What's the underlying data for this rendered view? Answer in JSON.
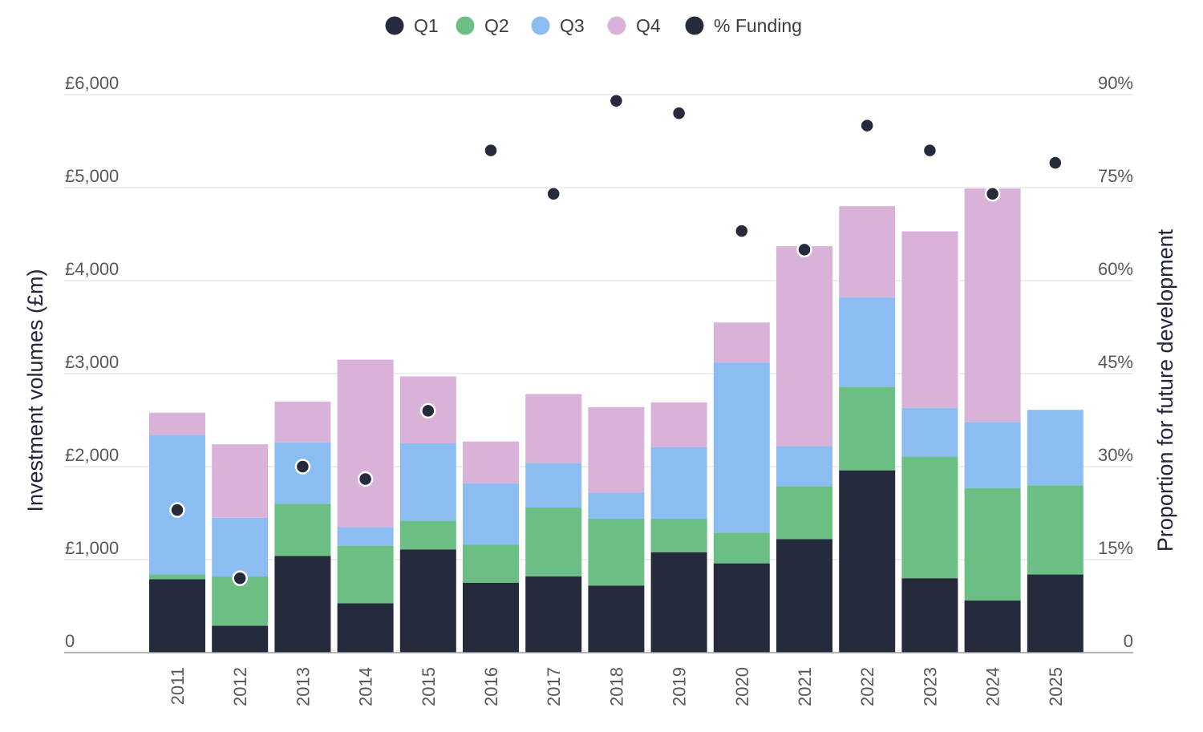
{
  "chart_data": {
    "type": "bar",
    "stacked": true,
    "categories": [
      "2011",
      "2012",
      "2013",
      "2014",
      "2015",
      "2016",
      "2017",
      "2018",
      "2019",
      "2020",
      "2021",
      "2022",
      "2023",
      "2024",
      "2025"
    ],
    "series": [
      {
        "name": "Q1",
        "color": "#262a3d",
        "values": [
          790,
          290,
          1040,
          530,
          1110,
          750,
          820,
          720,
          1080,
          960,
          1220,
          1960,
          800,
          560,
          840
        ]
      },
      {
        "name": "Q2",
        "color": "#6cbf84",
        "values": [
          50,
          530,
          560,
          620,
          310,
          410,
          740,
          720,
          360,
          330,
          570,
          900,
          1310,
          1210,
          960
        ]
      },
      {
        "name": "Q3",
        "color": "#8bbcf2",
        "values": [
          1500,
          630,
          660,
          200,
          830,
          660,
          480,
          280,
          770,
          1830,
          430,
          960,
          520,
          710,
          810
        ]
      },
      {
        "name": "Q4",
        "color": "#d8b2d8",
        "values": [
          240,
          790,
          440,
          1800,
          720,
          450,
          740,
          920,
          480,
          430,
          2150,
          980,
          1900,
          2510,
          0
        ]
      }
    ],
    "line_series": {
      "name": "% Funding",
      "color": "#262a3d",
      "axis": "right",
      "values": [
        23,
        12,
        30,
        28,
        39,
        81,
        74,
        89,
        87,
        68,
        65,
        85,
        81,
        74,
        79
      ]
    },
    "ylim": [
      0,
      6000
    ],
    "y2lim": [
      0,
      90
    ],
    "y_ticks": [
      "0",
      "£1,000",
      "£2,000",
      "£3,000",
      "£4,000",
      "£5,000",
      "£6,000"
    ],
    "y2_ticks": [
      "0",
      "15%",
      "30%",
      "45%",
      "60%",
      "75%",
      "90%"
    ],
    "ylabel": "Investment volumes (£m)",
    "y2label": "Proportion for future development",
    "legend": {
      "position": "top-center",
      "entries": [
        "Q1",
        "Q2",
        "Q3",
        "Q4",
        "% Funding"
      ]
    },
    "grid": true
  }
}
